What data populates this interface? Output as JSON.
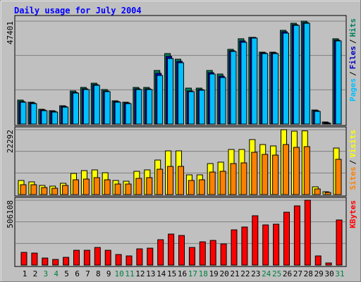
{
  "chart_data": [
    {
      "type": "bar",
      "title": "Daily usage for July 2004",
      "ylim": [
        0,
        47401
      ],
      "yticks": [
        47401
      ],
      "legend_separator": "/",
      "series": [
        {
          "name": "Hits",
          "color": "#008060",
          "values": [
            11040,
            10070,
            6820,
            6170,
            8440,
            15260,
            16880,
            18830,
            15910,
            10720,
            10070,
            16880,
            16880,
            24680,
            32470,
            29870,
            16560,
            16560,
            24680,
            23050,
            34420,
            39290,
            39940,
            33120,
            33120,
            43180,
            46430,
            47401,
            6490,
            970,
            39290
          ]
        },
        {
          "name": "Files",
          "color": "#0000c0",
          "values": [
            10390,
            9750,
            6490,
            5840,
            8120,
            14610,
            16230,
            18180,
            15260,
            10390,
            9740,
            16230,
            16230,
            23380,
            31170,
            28900,
            15260,
            15910,
            23700,
            22080,
            33770,
            38310,
            39940,
            32800,
            32800,
            42530,
            45780,
            46750,
            6170,
            650,
            38640
          ]
        },
        {
          "name": "Pages",
          "color": "#00c0ff",
          "values": [
            10070,
            9420,
            6170,
            5520,
            7790,
            14290,
            15910,
            17860,
            14940,
            10070,
            9420,
            15910,
            15910,
            22400,
            30200,
            28250,
            14940,
            15590,
            23050,
            21430,
            33450,
            37660,
            39610,
            32470,
            32470,
            41880,
            45460,
            46430,
            5840,
            330,
            38310
          ]
        }
      ]
    },
    {
      "type": "bar",
      "ylim": [
        0,
        22292
      ],
      "yticks": [
        22292
      ],
      "legend_separator": "/",
      "series": [
        {
          "name": "Visits",
          "color": "#ffff00",
          "values": [
            4850,
            4360,
            3150,
            2910,
            3880,
            7270,
            8240,
            8480,
            7510,
            4850,
            4600,
            8000,
            8480,
            11870,
            15020,
            15020,
            6780,
            6780,
            10660,
            11150,
            15510,
            15510,
            18900,
            17200,
            16720,
            22292,
            21810,
            21900,
            2670,
            970,
            15990
          ]
        },
        {
          "name": "Sites",
          "color": "#ff8000",
          "values": [
            3390,
            3390,
            2420,
            2180,
            3150,
            5090,
            5330,
            5820,
            5090,
            3630,
            3630,
            5570,
            5820,
            8720,
            9690,
            9690,
            4850,
            5090,
            7750,
            8000,
            10660,
            10900,
            14540,
            13810,
            13570,
            17200,
            16230,
            16480,
            1940,
            730,
            12120
          ]
        }
      ]
    },
    {
      "type": "bar",
      "ylim": [
        0,
        506108
      ],
      "yticks": [
        506108
      ],
      "categories": [
        "1",
        "2",
        "3",
        "4",
        "5",
        "6",
        "7",
        "8",
        "9",
        "10",
        "11",
        "12",
        "13",
        "14",
        "15",
        "16",
        "17",
        "18",
        "19",
        "20",
        "21",
        "22",
        "23",
        "24",
        "25",
        "26",
        "27",
        "28",
        "29",
        "30",
        "31"
      ],
      "category_colors": [
        "#000000",
        "#000000",
        "#008040",
        "#008040",
        "#000000",
        "#000000",
        "#000000",
        "#000000",
        "#000000",
        "#008040",
        "#008040",
        "#000000",
        "#000000",
        "#000000",
        "#000000",
        "#000000",
        "#008040",
        "#008040",
        "#000000",
        "#000000",
        "#000000",
        "#000000",
        "#000000",
        "#008040",
        "#008040",
        "#000000",
        "#000000",
        "#000000",
        "#000000",
        "#000000",
        "#008040"
      ],
      "series": [
        {
          "name": "KBytes",
          "color": "#ff0000",
          "values": [
            99000,
            93500,
            55000,
            44000,
            60500,
            115500,
            115500,
            137500,
            115500,
            82500,
            71500,
            126500,
            132000,
            198000,
            242000,
            231000,
            137500,
            181500,
            192500,
            165000,
            275000,
            297000,
            385000,
            313500,
            319000,
            412500,
            462000,
            506108,
            71500,
            16500,
            352000
          ]
        }
      ]
    }
  ]
}
